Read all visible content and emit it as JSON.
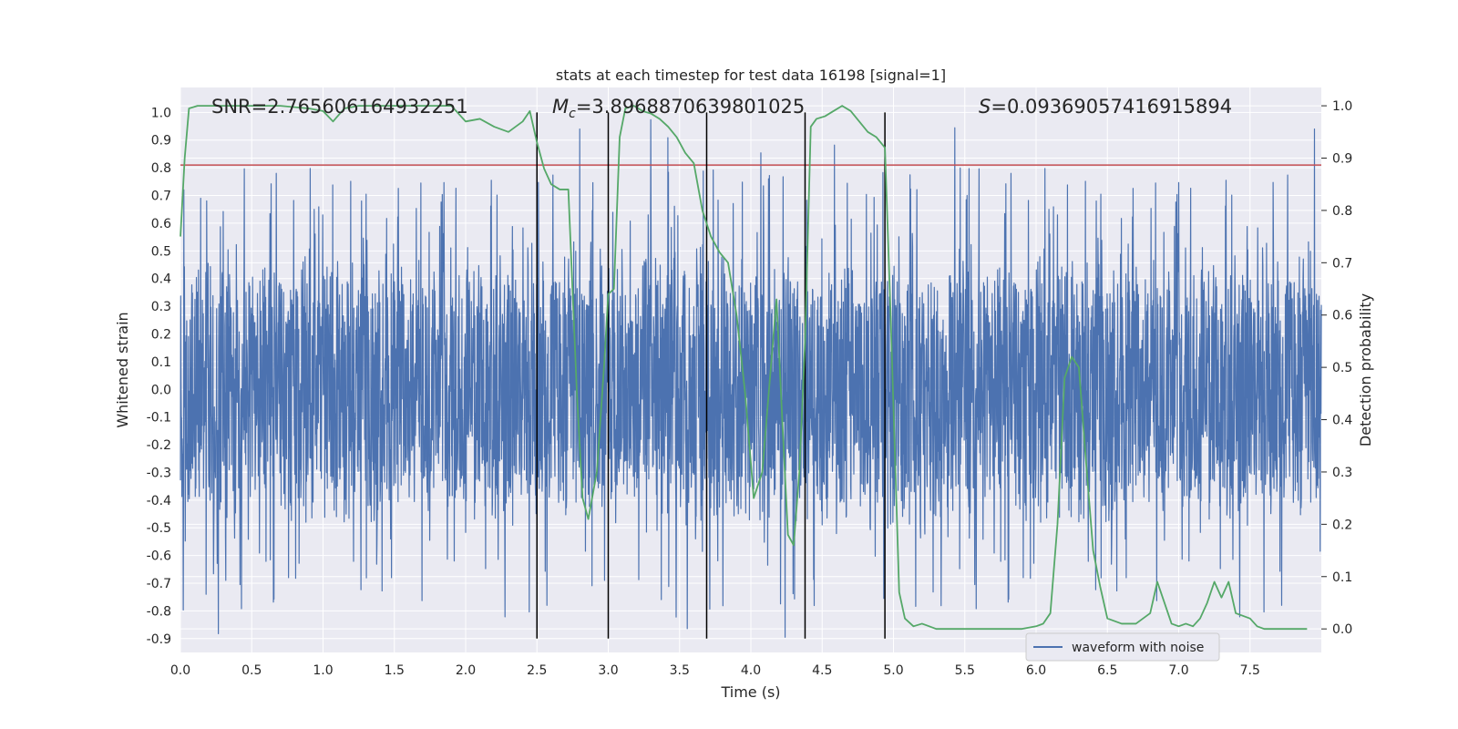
{
  "chart_data": {
    "type": "line",
    "title": "stats at each timestep for test data 16198 [signal=1]",
    "xlabel": "Time (s)",
    "ylabel": "Whitened strain",
    "ylabel_right": "Detection probability",
    "xlim": [
      0.0,
      8.0
    ],
    "ylim": [
      -0.95,
      1.09
    ],
    "ylim_right": [
      -0.045,
      1.035
    ],
    "x_ticks": [
      "0.0",
      "0.5",
      "1.0",
      "1.5",
      "2.0",
      "2.5",
      "3.0",
      "3.5",
      "4.0",
      "4.5",
      "5.0",
      "5.5",
      "6.0",
      "6.5",
      "7.0",
      "7.5"
    ],
    "y_ticks": [
      "1.0",
      "0.9",
      "0.8",
      "0.7",
      "0.6",
      "0.5",
      "0.4",
      "0.3",
      "0.2",
      "0.1",
      "0.0",
      "-0.1",
      "-0.2",
      "-0.3",
      "-0.4",
      "-0.5",
      "-0.6",
      "-0.7",
      "-0.8",
      "-0.9"
    ],
    "y_ticks_right": [
      "1.0",
      "0.9",
      "0.8",
      "0.7",
      "0.6",
      "0.5",
      "0.4",
      "0.3",
      "0.2",
      "0.1",
      "0.0"
    ],
    "grid": true,
    "legend_position": "bottom-right",
    "annotations": {
      "snr": "SNR=2.765606164932251",
      "mc_symbol": "M",
      "mc_sub": "c",
      "mc_value": "=3.8968870639801025",
      "s_symbol": "S",
      "s_value": "=0.09369057416915894"
    },
    "threshold": {
      "y": 0.81,
      "color": "#c44e52"
    },
    "vertical_lines": [
      2.5,
      3.0,
      3.69,
      4.38,
      4.94
    ],
    "series": [
      {
        "name": "waveform with noise",
        "axis": "left",
        "color": "#4c72b0",
        "style": "dense noise",
        "x_range": [
          0.0,
          8.0
        ],
        "typical_amplitude": 0.45,
        "peak_max": 1.0,
        "peak_min": -0.9
      },
      {
        "axis": "right",
        "color": "#55a868",
        "x": [
          0.0,
          0.03,
          0.06,
          0.12,
          0.2,
          0.3,
          0.5,
          0.7,
          0.9,
          1.0,
          1.07,
          1.15,
          1.25,
          1.4,
          1.6,
          1.8,
          1.9,
          2.0,
          2.1,
          2.2,
          2.3,
          2.4,
          2.45,
          2.5,
          2.55,
          2.6,
          2.66,
          2.72,
          2.78,
          2.82,
          2.86,
          2.92,
          2.97,
          3.0,
          3.04,
          3.08,
          3.12,
          3.18,
          3.24,
          3.3,
          3.36,
          3.42,
          3.48,
          3.54,
          3.6,
          3.66,
          3.72,
          3.78,
          3.84,
          3.9,
          3.96,
          4.02,
          4.08,
          4.14,
          4.18,
          4.22,
          4.26,
          4.3,
          4.34,
          4.38,
          4.42,
          4.46,
          4.52,
          4.58,
          4.64,
          4.7,
          4.76,
          4.82,
          4.88,
          4.94,
          4.98,
          5.04,
          5.08,
          5.14,
          5.2,
          5.3,
          5.4,
          5.5,
          5.6,
          5.7,
          5.8,
          5.9,
          6.0,
          6.05,
          6.1,
          6.15,
          6.2,
          6.25,
          6.3,
          6.35,
          6.4,
          6.45,
          6.5,
          6.6,
          6.7,
          6.8,
          6.85,
          6.9,
          6.95,
          7.0,
          7.05,
          7.1,
          7.15,
          7.2,
          7.25,
          7.3,
          7.35,
          7.4,
          7.45,
          7.5,
          7.55,
          7.6,
          7.7,
          7.8,
          7.9
        ],
        "y": [
          0.75,
          0.9,
          0.995,
          1.0,
          1.0,
          1.0,
          1.0,
          1.0,
          0.995,
          0.99,
          0.97,
          0.995,
          1.0,
          1.0,
          1.0,
          1.0,
          1.0,
          0.97,
          0.975,
          0.96,
          0.95,
          0.97,
          0.99,
          0.93,
          0.88,
          0.85,
          0.84,
          0.84,
          0.45,
          0.25,
          0.21,
          0.3,
          0.5,
          0.64,
          0.65,
          0.94,
          0.995,
          1.0,
          0.99,
          0.985,
          0.975,
          0.96,
          0.94,
          0.91,
          0.89,
          0.8,
          0.75,
          0.72,
          0.7,
          0.6,
          0.45,
          0.25,
          0.3,
          0.5,
          0.63,
          0.4,
          0.18,
          0.16,
          0.3,
          0.55,
          0.96,
          0.975,
          0.98,
          0.99,
          1.0,
          0.99,
          0.97,
          0.95,
          0.94,
          0.92,
          0.6,
          0.07,
          0.02,
          0.005,
          0.01,
          0.0,
          0.0,
          0.0,
          0.0,
          0.0,
          0.0,
          0.0,
          0.005,
          0.01,
          0.03,
          0.2,
          0.48,
          0.52,
          0.5,
          0.32,
          0.15,
          0.08,
          0.02,
          0.01,
          0.01,
          0.03,
          0.09,
          0.05,
          0.01,
          0.005,
          0.01,
          0.005,
          0.02,
          0.05,
          0.09,
          0.06,
          0.09,
          0.03,
          0.025,
          0.02,
          0.005,
          0.0,
          0.0,
          0.0,
          0.0
        ]
      }
    ]
  }
}
